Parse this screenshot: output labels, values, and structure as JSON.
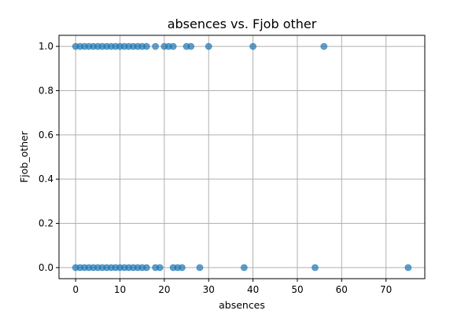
{
  "chart_data": {
    "type": "scatter",
    "title": "absences vs. Fjob other",
    "xlabel": "absences",
    "ylabel": "Fjob_other",
    "xlim": [
      -3.75,
      78.75
    ],
    "ylim": [
      -0.05,
      1.05
    ],
    "xticks": [
      0,
      10,
      20,
      30,
      40,
      50,
      60,
      70
    ],
    "yticks": [
      0.0,
      0.2,
      0.4,
      0.6,
      0.8,
      1.0
    ],
    "ytick_labels": [
      "0.0",
      "0.2",
      "0.4",
      "0.6",
      "0.8",
      "1.0"
    ],
    "grid": true,
    "marker_color": "#1f77b4",
    "marker_alpha": 0.7,
    "points": [
      {
        "x": 0,
        "y": 1
      },
      {
        "x": 1,
        "y": 1
      },
      {
        "x": 2,
        "y": 1
      },
      {
        "x": 3,
        "y": 1
      },
      {
        "x": 4,
        "y": 1
      },
      {
        "x": 5,
        "y": 1
      },
      {
        "x": 6,
        "y": 1
      },
      {
        "x": 7,
        "y": 1
      },
      {
        "x": 8,
        "y": 1
      },
      {
        "x": 9,
        "y": 1
      },
      {
        "x": 10,
        "y": 1
      },
      {
        "x": 11,
        "y": 1
      },
      {
        "x": 12,
        "y": 1
      },
      {
        "x": 13,
        "y": 1
      },
      {
        "x": 14,
        "y": 1
      },
      {
        "x": 15,
        "y": 1
      },
      {
        "x": 16,
        "y": 1
      },
      {
        "x": 18,
        "y": 1
      },
      {
        "x": 20,
        "y": 1
      },
      {
        "x": 21,
        "y": 1
      },
      {
        "x": 22,
        "y": 1
      },
      {
        "x": 25,
        "y": 1
      },
      {
        "x": 26,
        "y": 1
      },
      {
        "x": 30,
        "y": 1
      },
      {
        "x": 40,
        "y": 1
      },
      {
        "x": 56,
        "y": 1
      },
      {
        "x": 0,
        "y": 0
      },
      {
        "x": 1,
        "y": 0
      },
      {
        "x": 2,
        "y": 0
      },
      {
        "x": 3,
        "y": 0
      },
      {
        "x": 4,
        "y": 0
      },
      {
        "x": 5,
        "y": 0
      },
      {
        "x": 6,
        "y": 0
      },
      {
        "x": 7,
        "y": 0
      },
      {
        "x": 8,
        "y": 0
      },
      {
        "x": 9,
        "y": 0
      },
      {
        "x": 10,
        "y": 0
      },
      {
        "x": 11,
        "y": 0
      },
      {
        "x": 12,
        "y": 0
      },
      {
        "x": 13,
        "y": 0
      },
      {
        "x": 14,
        "y": 0
      },
      {
        "x": 15,
        "y": 0
      },
      {
        "x": 16,
        "y": 0
      },
      {
        "x": 18,
        "y": 0
      },
      {
        "x": 19,
        "y": 0
      },
      {
        "x": 22,
        "y": 0
      },
      {
        "x": 23,
        "y": 0
      },
      {
        "x": 24,
        "y": 0
      },
      {
        "x": 28,
        "y": 0
      },
      {
        "x": 38,
        "y": 0
      },
      {
        "x": 54,
        "y": 0
      },
      {
        "x": 75,
        "y": 0
      }
    ]
  }
}
